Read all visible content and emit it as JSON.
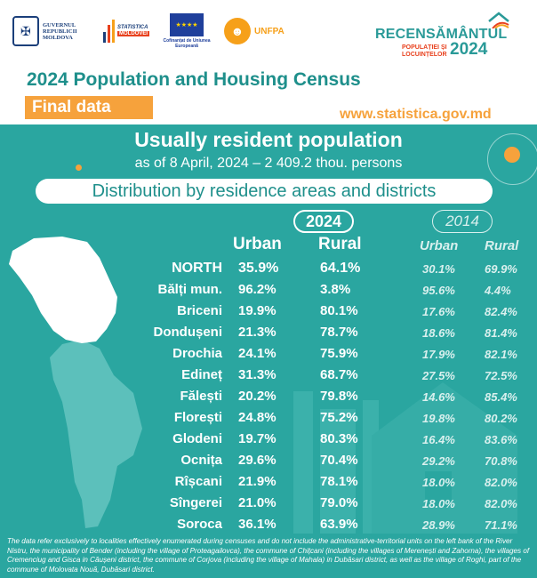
{
  "logos": {
    "gov_text": "GUVERNUL REPUBLICII MOLDOVA",
    "stat_text_a": "STATISTICA",
    "stat_text_b": "MOLDOVEI",
    "eu_text": "Cofinanțat de Uniunea Europeană",
    "unfpa_text": "UNFPA",
    "census_title": "RECENSĂMÂNTUL",
    "census_sub": "POPULAȚIEI ȘI LOCUINȚELOR",
    "census_year": "2024"
  },
  "header": {
    "title": "2024 Population and Housing Census",
    "badge": "Final data",
    "website": "www.statistica.gov.md"
  },
  "section": {
    "title": "Usually resident population",
    "subtitle": "as of 8 April, 2024 – 2 409.2 thou. persons",
    "heading": "Distribution by residence areas and districts"
  },
  "table": {
    "year_current": "2024",
    "year_previous": "2014",
    "col_urban": "Urban",
    "col_rural": "Rural",
    "rows": [
      {
        "name": "NORTH",
        "urban": "35.9%",
        "rural": "64.1%",
        "urban_2014": "30.1%",
        "rural_2014": "69.9%"
      },
      {
        "name": "Bălți mun.",
        "urban": "96.2%",
        "rural": "3.8%",
        "urban_2014": "95.6%",
        "rural_2014": "4.4%"
      },
      {
        "name": "Briceni",
        "urban": "19.9%",
        "rural": "80.1%",
        "urban_2014": "17.6%",
        "rural_2014": "82.4%"
      },
      {
        "name": "Dondușeni",
        "urban": "21.3%",
        "rural": "78.7%",
        "urban_2014": "18.6%",
        "rural_2014": "81.4%"
      },
      {
        "name": "Drochia",
        "urban": "24.1%",
        "rural": "75.9%",
        "urban_2014": "17.9%",
        "rural_2014": "82.1%"
      },
      {
        "name": "Edineț",
        "urban": "31.3%",
        "rural": "68.7%",
        "urban_2014": "27.5%",
        "rural_2014": "72.5%"
      },
      {
        "name": "Fălești",
        "urban": "20.2%",
        "rural": "79.8%",
        "urban_2014": "14.6%",
        "rural_2014": "85.4%"
      },
      {
        "name": "Florești",
        "urban": "24.8%",
        "rural": "75.2%",
        "urban_2014": "19.8%",
        "rural_2014": "80.2%"
      },
      {
        "name": "Glodeni",
        "urban": "19.7%",
        "rural": "80.3%",
        "urban_2014": "16.4%",
        "rural_2014": "83.6%"
      },
      {
        "name": "Ocnița",
        "urban": "29.6%",
        "rural": "70.4%",
        "urban_2014": "29.2%",
        "rural_2014": "70.8%"
      },
      {
        "name": "Rîșcani",
        "urban": "21.9%",
        "rural": "78.1%",
        "urban_2014": "18.0%",
        "rural_2014": "82.0%"
      },
      {
        "name": "Sîngerei",
        "urban": "21.0%",
        "rural": "79.0%",
        "urban_2014": "18.0%",
        "rural_2014": "82.0%"
      },
      {
        "name": "Soroca",
        "urban": "36.1%",
        "rural": "63.9%",
        "urban_2014": "28.9%",
        "rural_2014": "71.1%"
      }
    ]
  },
  "footnote": "The data refer exclusively to localities effectively enumerated during censuses and do not include the administrative-territorial units on the left bank of the River Nistru, the municipality of Bender (including the village of Proteagailovca), the commune of Chițcani (including the villages of Merenești and Zahorna), the villages of Cremenciug and Gisca in Căușeni district, the commune of Corjova (including the village of Mahala) in Dubăsari district, as well as the village of Roghi, part of the commune of Molovata Nouă, Dubăsari district.",
  "colors": {
    "background": "#2aa6a0",
    "accent": "#f6a23c",
    "title": "#1e8f8b",
    "map_highlight": "#ffffff",
    "map_rest": "#5cc0bb"
  }
}
